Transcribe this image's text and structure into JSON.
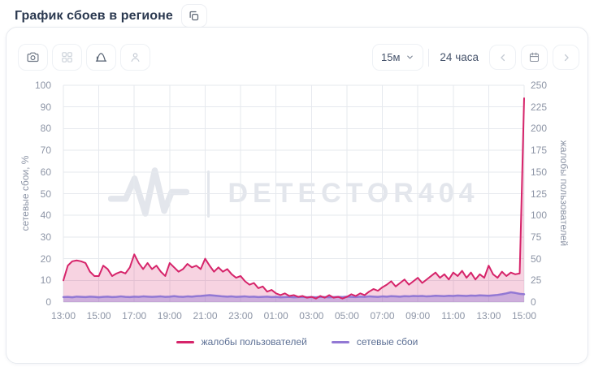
{
  "header": {
    "title": "График сбоев в регионе"
  },
  "toolbar": {
    "left_icons": [
      "camera",
      "layout-grid",
      "distribution-chart",
      "user"
    ],
    "interval_selector": {
      "value": "15м"
    },
    "range_label": "24 часа",
    "nav_icons": [
      "chevron-left",
      "calendar",
      "chevron-right"
    ]
  },
  "chart_data": {
    "type": "area",
    "title": "График сбоев в регионе",
    "watermark": "DETECTOR404",
    "grid": true,
    "legend_position": "bottom",
    "x_ticks": [
      "13:00",
      "15:00",
      "17:00",
      "19:00",
      "21:00",
      "23:00",
      "01:00",
      "03:00",
      "05:00",
      "07:00",
      "09:00",
      "11:00",
      "13:00",
      "15:00"
    ],
    "axes": {
      "left": {
        "label": "сетевые сбои, %",
        "min": 0,
        "max": 100,
        "step": 10
      },
      "right": {
        "label": "жалобы пользователей",
        "min": 0,
        "max": 250,
        "step": 25
      }
    },
    "series": [
      {
        "name": "жалобы пользователей",
        "axis": "right",
        "color": "#d6246a",
        "fill": "rgba(214,36,106,0.20)",
        "stroke_width": 2,
        "values": [
          25,
          42,
          47,
          48,
          47,
          45,
          35,
          30,
          30,
          42,
          38,
          30,
          33,
          35,
          33,
          40,
          55,
          45,
          38,
          45,
          38,
          42,
          35,
          30,
          45,
          40,
          35,
          38,
          44,
          40,
          42,
          38,
          50,
          42,
          35,
          40,
          35,
          38,
          32,
          28,
          30,
          24,
          20,
          22,
          16,
          18,
          12,
          14,
          10,
          8,
          10,
          7,
          8,
          6,
          7,
          5,
          6,
          4,
          7,
          5,
          8,
          5,
          6,
          4,
          6,
          9,
          7,
          10,
          8,
          12,
          15,
          13,
          17,
          20,
          24,
          18,
          22,
          26,
          20,
          24,
          28,
          22,
          26,
          30,
          34,
          28,
          32,
          26,
          34,
          30,
          36,
          28,
          34,
          26,
          32,
          28,
          42,
          32,
          28,
          35,
          30,
          34,
          32,
          33,
          235
        ]
      },
      {
        "name": "сетевые сбои",
        "axis": "left",
        "color": "#9278d4",
        "fill": "rgba(146,120,212,0.40)",
        "stroke_width": 2.5,
        "values": [
          2.3,
          2.4,
          2.2,
          2.5,
          2.4,
          2.3,
          2.5,
          2.4,
          2.2,
          2.4,
          2.5,
          2.3,
          2.4,
          2.6,
          2.4,
          2.3,
          2.5,
          2.4,
          2.6,
          2.5,
          2.4,
          2.5,
          2.6,
          2.4,
          2.5,
          2.7,
          2.5,
          2.4,
          2.6,
          2.5,
          2.7,
          2.8,
          3.0,
          3.2,
          3.0,
          2.8,
          2.6,
          2.5,
          2.6,
          2.4,
          2.5,
          2.6,
          2.4,
          2.5,
          2.3,
          2.4,
          2.5,
          2.3,
          2.4,
          2.2,
          2.3,
          2.4,
          2.2,
          2.3,
          2.4,
          2.2,
          2.3,
          2.2,
          2.4,
          2.3,
          2.2,
          2.3,
          2.4,
          2.3,
          2.5,
          2.4,
          2.3,
          2.5,
          2.4,
          2.6,
          2.5,
          2.4,
          2.6,
          2.5,
          2.7,
          2.6,
          2.5,
          2.7,
          2.6,
          2.8,
          2.7,
          2.8,
          2.6,
          2.7,
          2.9,
          2.8,
          2.7,
          2.9,
          2.8,
          3.0,
          2.9,
          2.8,
          3.0,
          2.9,
          3.1,
          3.0,
          2.9,
          3.1,
          3.3,
          3.6,
          4.0,
          4.5,
          4.2,
          3.8,
          3.6
        ]
      }
    ]
  },
  "colors": {
    "accent_crimson": "#d6246a",
    "accent_purple": "#9278d4",
    "grid": "#e6e9ee",
    "tick_text": "#8d95a6",
    "watermark": "#e3e6ec"
  }
}
